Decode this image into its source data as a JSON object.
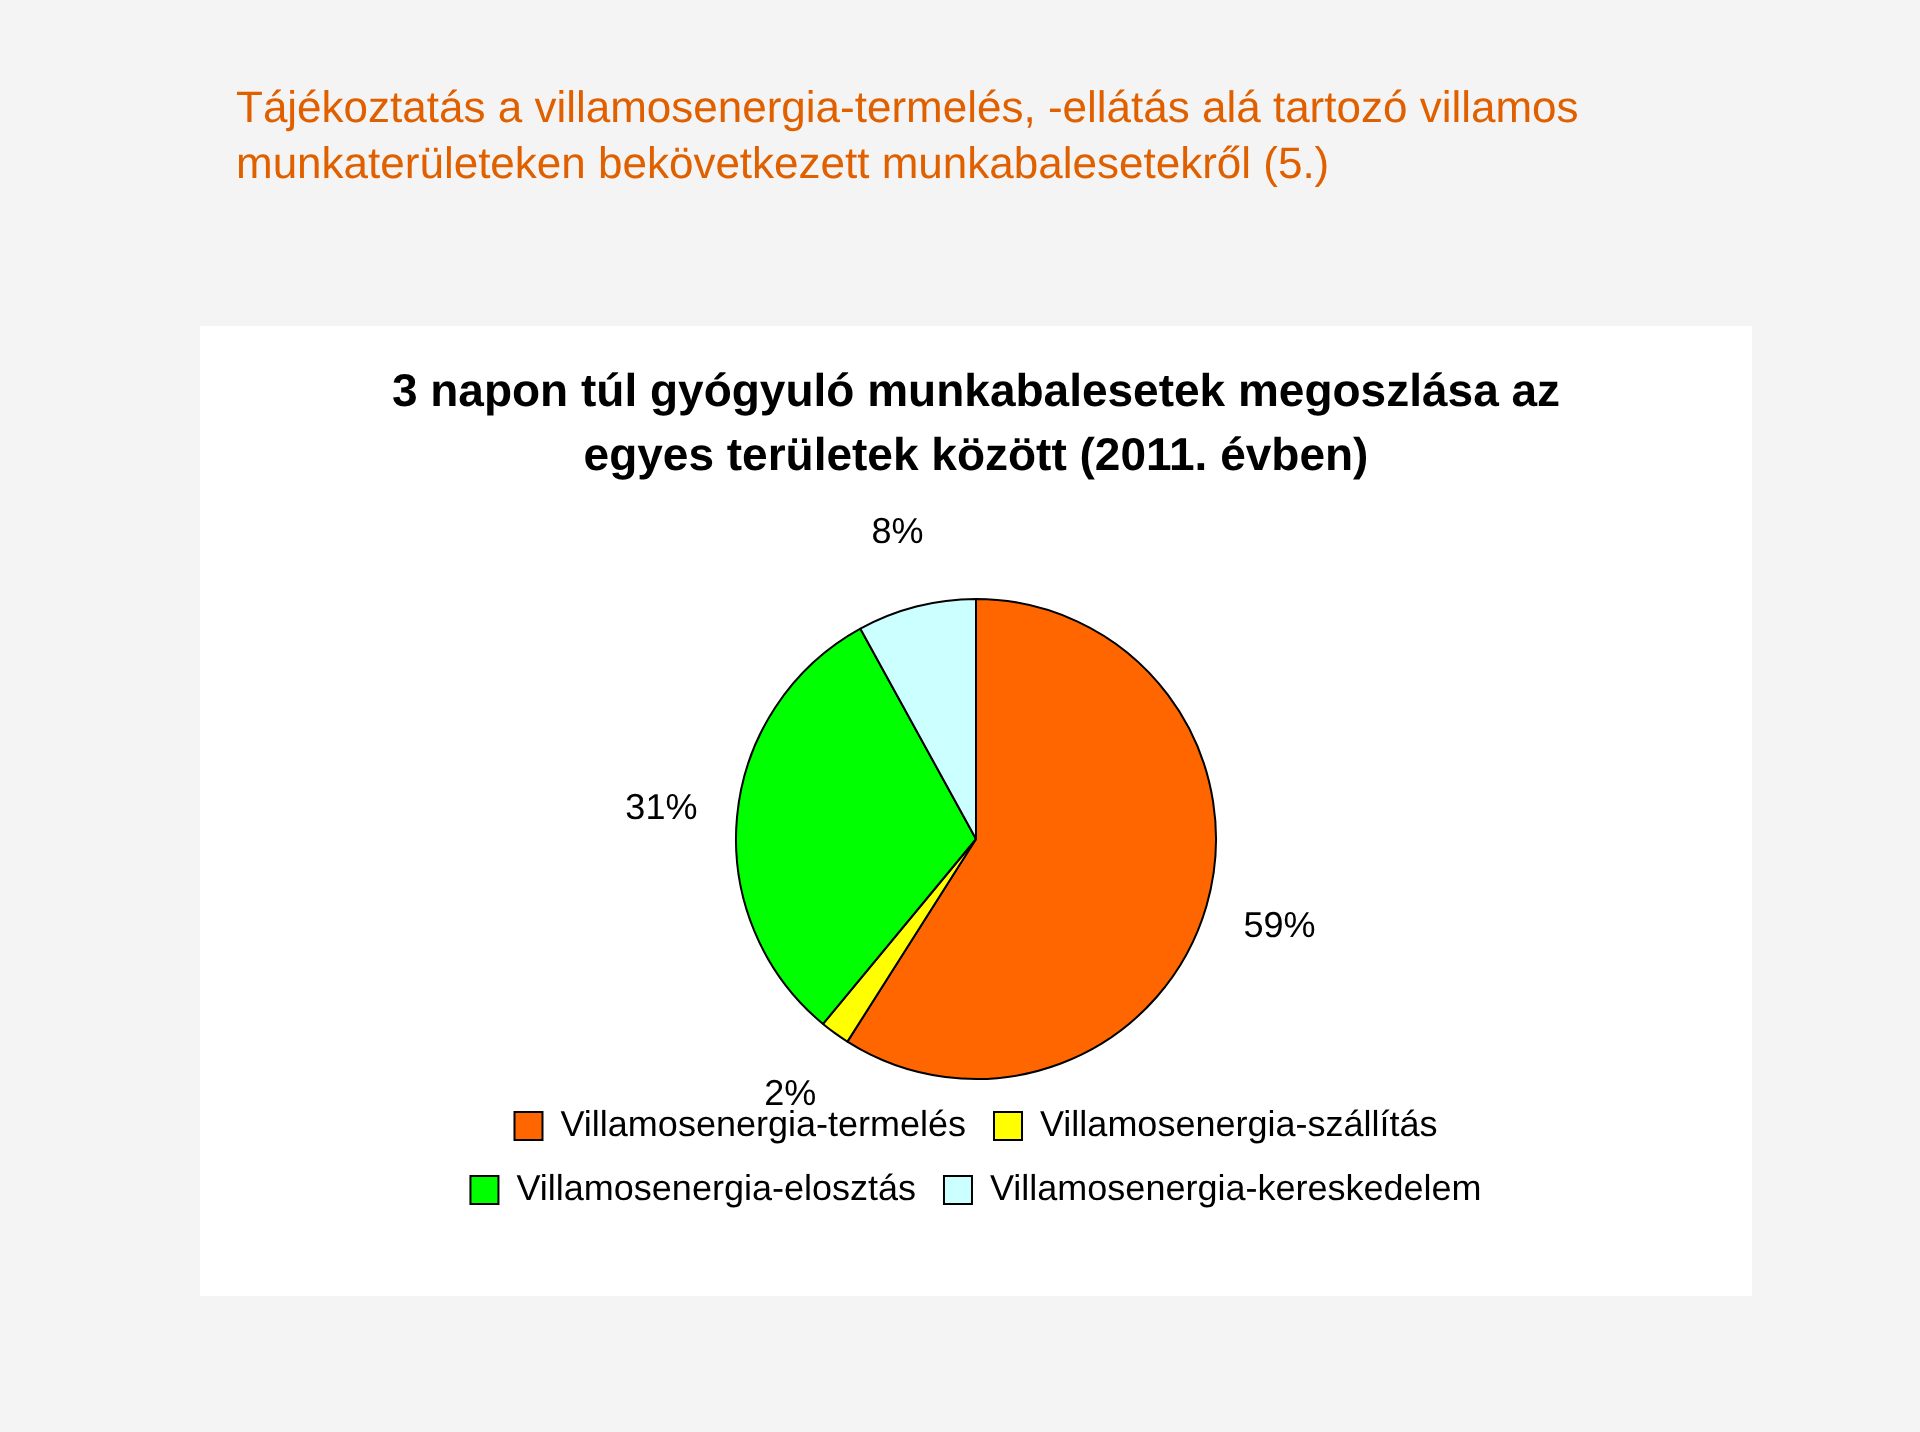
{
  "chart_data": {
    "type": "pie",
    "title": "Tájékoztatás a villamosenergia-termelés, -ellátás alá tartozó villamos munkaterületeken bekövetkezett munkabalesetekről (5.)",
    "subtitle": "3 napon túl gyógyuló munkabalesetek megoszlása az egyes területek között (2011. évben)",
    "categories": [
      "Villamosenergia-termelés",
      "Villamosenergia-szállítás",
      "Villamosenergia-elosztás",
      "Villamosenergia-kereskedelem"
    ],
    "values": [
      59,
      2,
      31,
      8
    ],
    "value_labels": [
      "59%",
      "2%",
      "31%",
      "8%"
    ],
    "colors": [
      "#ff6600",
      "#ffff00",
      "#00ff00",
      "#ccffff"
    ],
    "legend": "bottom"
  }
}
